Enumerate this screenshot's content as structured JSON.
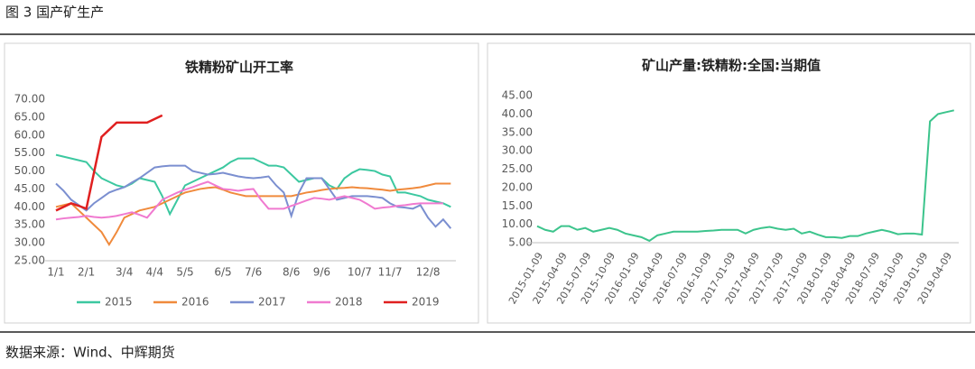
{
  "header": {
    "title": "图 3 国产矿生产"
  },
  "footer": {
    "text": "数据来源：Wind、中辉期货"
  },
  "chart_data": [
    {
      "type": "line",
      "title": "铁精粉矿山开工率",
      "categories": [
        "1/1",
        null,
        null,
        null,
        "2/1",
        null,
        null,
        null,
        null,
        "3/4",
        null,
        null,
        null,
        "4/4",
        null,
        null,
        null,
        "5/5",
        null,
        null,
        null,
        null,
        "6/5",
        null,
        null,
        null,
        "7/6",
        null,
        null,
        null,
        null,
        "8/6",
        null,
        null,
        null,
        "9/6",
        null,
        null,
        null,
        null,
        "10/7",
        null,
        null,
        null,
        "11/7",
        null,
        null,
        null,
        null,
        "12/8",
        null,
        null,
        null
      ],
      "ylim": [
        25,
        70
      ],
      "yticks": [
        {
          "value": 25,
          "label": "25.00"
        },
        {
          "value": 30,
          "label": "30.00"
        },
        {
          "value": 35,
          "label": "35.00"
        },
        {
          "value": 40,
          "label": "40.00"
        },
        {
          "value": 45,
          "label": "45.00"
        },
        {
          "value": 50,
          "label": "50.00"
        },
        {
          "value": 55,
          "label": "55.00"
        },
        {
          "value": 60,
          "label": "60.00"
        },
        {
          "value": 65,
          "label": "65.00"
        },
        {
          "value": 70,
          "label": "70.00"
        }
      ],
      "legend": "bottom",
      "series": [
        {
          "name": "2015",
          "color": "#3cc8a0",
          "values": [
            54.5,
            54,
            53.5,
            53,
            52.5,
            50,
            48,
            47,
            46,
            45.5,
            46.5,
            48,
            47.5,
            47,
            43,
            38,
            42,
            46,
            47,
            48,
            49,
            50,
            51,
            52.5,
            53.5,
            53.5,
            53.5,
            52.5,
            51.5,
            51.5,
            51,
            49,
            47,
            47.5,
            48,
            48,
            46,
            45,
            48,
            49.5,
            50.5,
            50.3,
            50,
            49,
            48.5,
            44,
            44,
            43.5,
            43,
            42,
            41.5,
            41,
            40
          ]
        },
        {
          "name": "2016",
          "color": "#f08a3c",
          "values": [
            40,
            40.5,
            41,
            39,
            37,
            35,
            33,
            29.5,
            33,
            37,
            38,
            39,
            39.5,
            40,
            41,
            42,
            43,
            44,
            44.5,
            45,
            45.3,
            45.5,
            44.8,
            44,
            43.5,
            43,
            43,
            43,
            43,
            43,
            43,
            43,
            43.5,
            44,
            44.3,
            44.7,
            45,
            45.2,
            45.3,
            45.5,
            45.3,
            45.2,
            45,
            44.8,
            44.5,
            44.8,
            45,
            45.2,
            45.5,
            46,
            46.5,
            46.5,
            46.5
          ]
        },
        {
          "name": "2017",
          "color": "#7b8fd0",
          "values": [
            46.5,
            44.5,
            42,
            40.5,
            39,
            41,
            42.5,
            44,
            44.8,
            45.5,
            46.8,
            48,
            49.5,
            51,
            51.3,
            51.5,
            51.5,
            51.5,
            50,
            49.5,
            49,
            49.2,
            49.5,
            49,
            48.5,
            48.2,
            48,
            48.2,
            48.5,
            46,
            44,
            37.5,
            44,
            48,
            48,
            48,
            45,
            42,
            42.5,
            43,
            43,
            43,
            42.8,
            42.5,
            41,
            40,
            39.8,
            39.5,
            40.5,
            37,
            34.5,
            36.5,
            34
          ]
        },
        {
          "name": "2018",
          "color": "#f07ad0",
          "values": [
            36.5,
            36.8,
            37,
            37.2,
            37.5,
            37.2,
            37,
            37.2,
            37.5,
            38,
            38.5,
            37.8,
            37,
            39.5,
            42,
            43,
            44,
            44.8,
            45.5,
            46.3,
            47,
            46,
            45,
            44.8,
            44.5,
            44.8,
            45,
            42,
            39.5,
            39.5,
            39.5,
            40.3,
            41,
            41.8,
            42.5,
            42.3,
            42,
            42.5,
            43,
            42.5,
            42,
            40.8,
            39.5,
            39.8,
            40,
            40.3,
            40.5,
            40.8,
            41,
            41,
            41,
            41,
            null
          ]
        },
        {
          "name": "2019",
          "color": "#e02020",
          "values": [
            39,
            40,
            41,
            40.3,
            39.5,
            49.5,
            59.5,
            61.5,
            63.5,
            63.5,
            63.5,
            63.5,
            63.5,
            64.5,
            65.5,
            null,
            null,
            null,
            null,
            null,
            null,
            null,
            null,
            null,
            null,
            null,
            null,
            null,
            null,
            null,
            null,
            null,
            null,
            null,
            null,
            null,
            null,
            null,
            null,
            null,
            null,
            null,
            null,
            null,
            null,
            null,
            null,
            null,
            null,
            null,
            null,
            null,
            null
          ]
        }
      ]
    },
    {
      "type": "line",
      "title": "矿山产量:铁精粉:全国:当期值",
      "categories": [
        "2015-01-09",
        null,
        null,
        "2015-04-09",
        null,
        null,
        "2015-07-09",
        null,
        null,
        "2015-10-09",
        null,
        null,
        "2016-01-09",
        null,
        null,
        "2016-04-09",
        null,
        null,
        "2016-07-09",
        null,
        null,
        "2016-10-09",
        null,
        null,
        "2017-01-09",
        null,
        null,
        "2017-04-09",
        null,
        null,
        "2017-07-09",
        null,
        null,
        "2017-10-09",
        null,
        null,
        "2018-01-09",
        null,
        null,
        "2018-04-09",
        null,
        null,
        "2018-07-09",
        null,
        null,
        "2018-10-09",
        null,
        null,
        "2019-01-09",
        null,
        null,
        "2019-04-09",
        null
      ],
      "ylim": [
        5,
        45
      ],
      "yticks": [
        {
          "value": 5,
          "label": "5.00"
        },
        {
          "value": 10,
          "label": "10.00"
        },
        {
          "value": 15,
          "label": "15.00"
        },
        {
          "value": 20,
          "label": "20.00"
        },
        {
          "value": 25,
          "label": "25.00"
        },
        {
          "value": 30,
          "label": "30.00"
        },
        {
          "value": 35,
          "label": "35.00"
        },
        {
          "value": 40,
          "label": "40.00"
        },
        {
          "value": 45,
          "label": "45.00"
        }
      ],
      "series": [
        {
          "color": "#3cc48c",
          "values": [
            9.5,
            8.5,
            8,
            9.5,
            9.5,
            8.5,
            9,
            8,
            8.5,
            9,
            8.5,
            7.5,
            7,
            6.5,
            5.5,
            7,
            7.5,
            8,
            8,
            8,
            8,
            8.2,
            8.3,
            8.5,
            8.5,
            8.5,
            7.5,
            8.5,
            9,
            9.3,
            8.8,
            8.5,
            8.8,
            7.5,
            8,
            7.2,
            6.5,
            6.5,
            6.3,
            6.8,
            6.8,
            7.5,
            8,
            8.5,
            8,
            7.3,
            7.5,
            7.5,
            7.2,
            38,
            40,
            40.5,
            41
          ]
        }
      ]
    }
  ]
}
